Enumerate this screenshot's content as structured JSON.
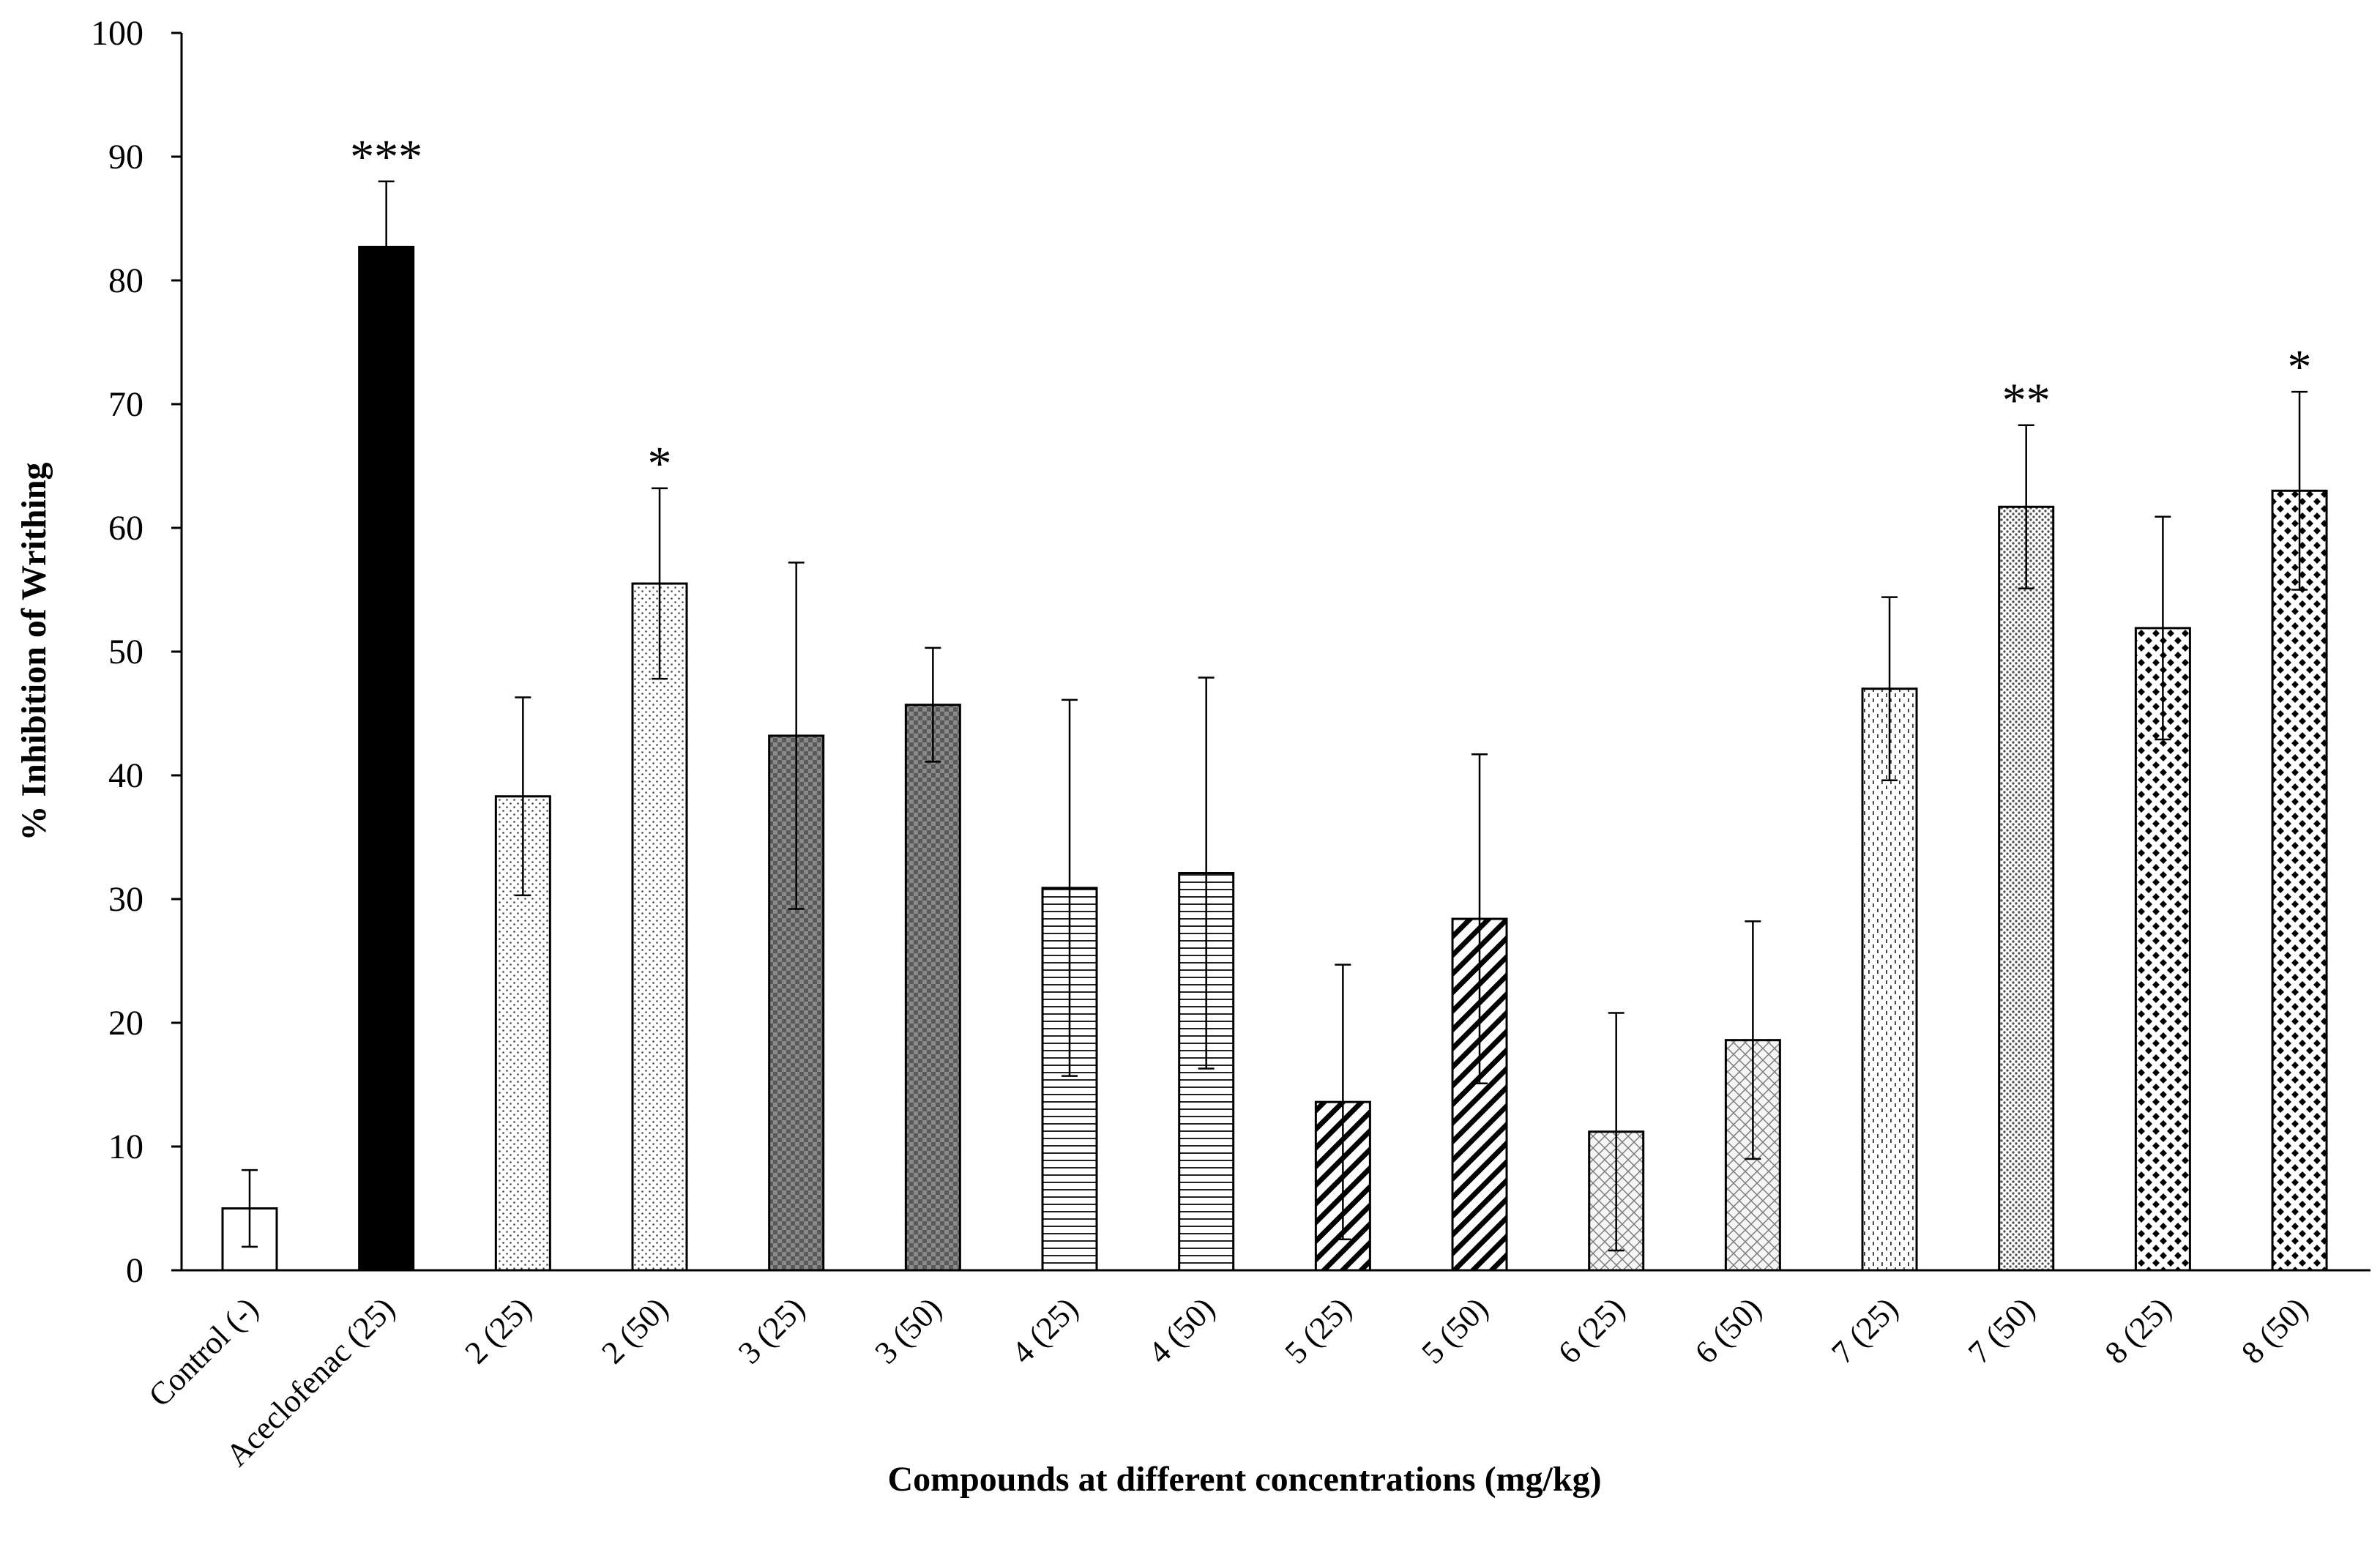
{
  "chart_data": {
    "type": "bar",
    "title": "",
    "xlabel": "Compounds at different concentrations (mg/kg)",
    "ylabel": "% Inhibition of  Writhing",
    "ylim": [
      0,
      100
    ],
    "yticks": [
      0,
      10,
      20,
      30,
      40,
      50,
      60,
      70,
      80,
      90,
      100
    ],
    "grid": false,
    "categories": [
      "Control (-)",
      "Aceclofenac (25)",
      "2 (25)",
      "2 (50)",
      "3 (25)",
      "3 (50)",
      "4 (25)",
      "4 (50)",
      "5 (25)",
      "5 (50)",
      "6 (25)",
      "6 (50)",
      "7 (25)",
      "7 (50)",
      "8 (25)",
      "8 (50)"
    ],
    "values": [
      5,
      82.7,
      38.3,
      55.5,
      43.2,
      45.7,
      30.9,
      32.1,
      13.6,
      28.4,
      11.2,
      18.6,
      47,
      61.7,
      51.9,
      63
    ],
    "errors": [
      3.1,
      5.3,
      8,
      7.7,
      14,
      4.6,
      15.2,
      15.8,
      11.1,
      13.3,
      9.6,
      9.6,
      7.4,
      6.6,
      9,
      8
    ],
    "significance": [
      "",
      "***",
      "",
      "*",
      "",
      "",
      "",
      "",
      "",
      "",
      "",
      "",
      "",
      "**",
      "",
      "*"
    ],
    "patterns": [
      "blank",
      "solid",
      "fine-dots",
      "fine-dots",
      "checker",
      "checker",
      "hlines",
      "hlines",
      "diag-thick",
      "diag-thick",
      "crosshatch-light",
      "crosshatch-light",
      "dashed-dots",
      "dense-dots",
      "diamonds",
      "diamonds"
    ]
  }
}
